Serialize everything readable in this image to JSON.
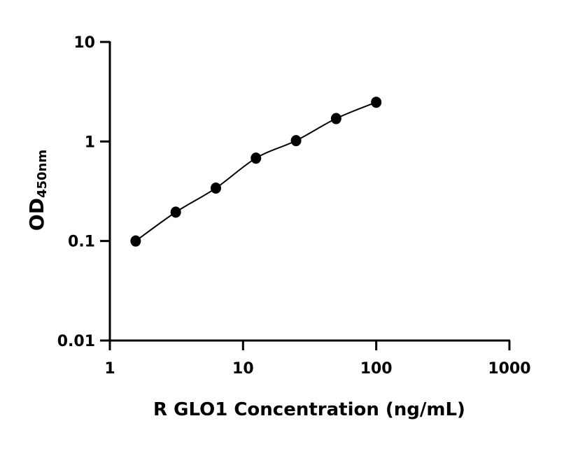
{
  "chart_data": {
    "type": "scatter",
    "title": "",
    "xlabel": "R GLO1 Concentration (ng/mL)",
    "ylabel_main": "OD",
    "ylabel_sub": "450nm",
    "xscale": "log",
    "yscale": "log",
    "xlim": [
      1,
      1000
    ],
    "ylim": [
      0.01,
      10
    ],
    "xticks": [
      "1",
      "10",
      "100",
      "1000"
    ],
    "yticks": [
      "0.01",
      "0.1",
      "1",
      "10"
    ],
    "grid": false,
    "fit_curve": true,
    "marker_color": "#000000",
    "x": [
      1.5625,
      3.125,
      6.25,
      12.5,
      25,
      50,
      100
    ],
    "y": [
      0.1,
      0.195,
      0.34,
      0.68,
      1.02,
      1.7,
      2.48
    ]
  }
}
